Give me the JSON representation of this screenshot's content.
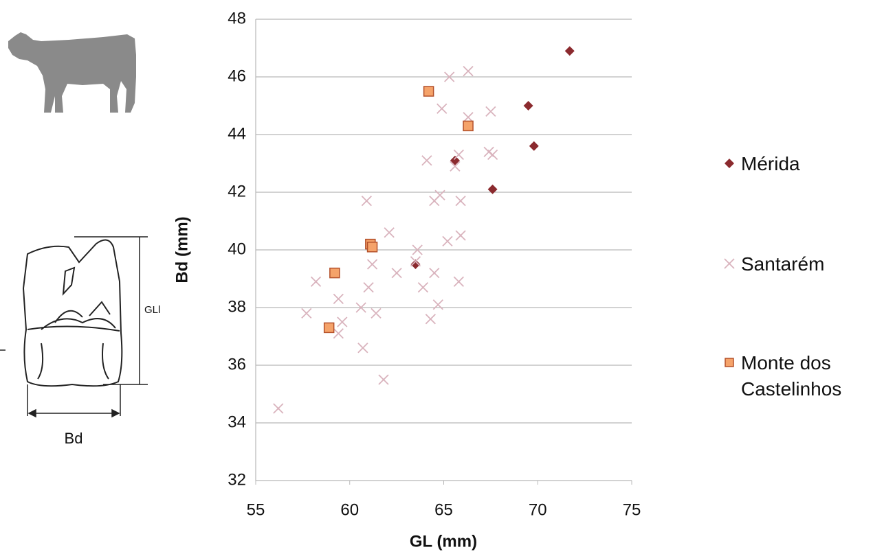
{
  "chart_data": {
    "type": "scatter",
    "xlabel": "GL (mm)",
    "ylabel": "Bd (mm)",
    "xlim": [
      55,
      75
    ],
    "xticks": [
      55,
      60,
      65,
      70,
      75
    ],
    "ylim": [
      32,
      48
    ],
    "yticks": [
      32,
      34,
      36,
      38,
      40,
      42,
      44,
      46,
      48
    ],
    "grid": true,
    "legend_position": "right",
    "series": [
      {
        "name": "Mérida",
        "color": "#8b2a2e",
        "marker": "diamond",
        "x": [
          71.7,
          69.5,
          69.8,
          65.6,
          67.6,
          63.5
        ],
        "y": [
          46.9,
          45.0,
          43.6,
          43.1,
          42.1,
          39.5
        ]
      },
      {
        "name": "Santarém",
        "color": "#d9b3bd",
        "marker": "cross",
        "x": [
          65.3,
          66.3,
          64.9,
          66.3,
          67.5,
          67.4,
          67.6,
          65.8,
          64.1,
          65.6,
          60.9,
          64.8,
          64.5,
          65.9,
          62.1,
          65.9,
          65.2,
          63.6,
          58.2,
          61.2,
          62.5,
          63.5,
          64.5,
          65.8,
          61.0,
          63.9,
          59.4,
          60.6,
          64.7,
          57.7,
          61.4,
          59.6,
          59.4,
          64.3,
          60.7,
          61.8,
          56.2
        ],
        "y": [
          46.0,
          46.2,
          44.9,
          44.6,
          44.8,
          43.4,
          43.3,
          43.3,
          43.1,
          42.9,
          41.7,
          41.9,
          41.7,
          41.7,
          40.6,
          40.5,
          40.3,
          40.0,
          38.9,
          39.5,
          39.2,
          39.6,
          39.2,
          38.9,
          38.7,
          38.7,
          38.3,
          38.0,
          38.1,
          37.8,
          37.8,
          37.5,
          37.1,
          37.6,
          36.6,
          35.5,
          34.5
        ]
      },
      {
        "name": "Monte dos Castelinhos",
        "color": "#f5a36a",
        "edge_color": "#b3502a",
        "marker": "square",
        "x": [
          64.2,
          66.3,
          61.1,
          61.2,
          59.2,
          58.9
        ],
        "y": [
          45.5,
          44.3,
          40.2,
          40.1,
          39.2,
          37.3
        ]
      }
    ]
  },
  "figure_labels": {
    "length": "GLl",
    "breadth": "Bd"
  }
}
